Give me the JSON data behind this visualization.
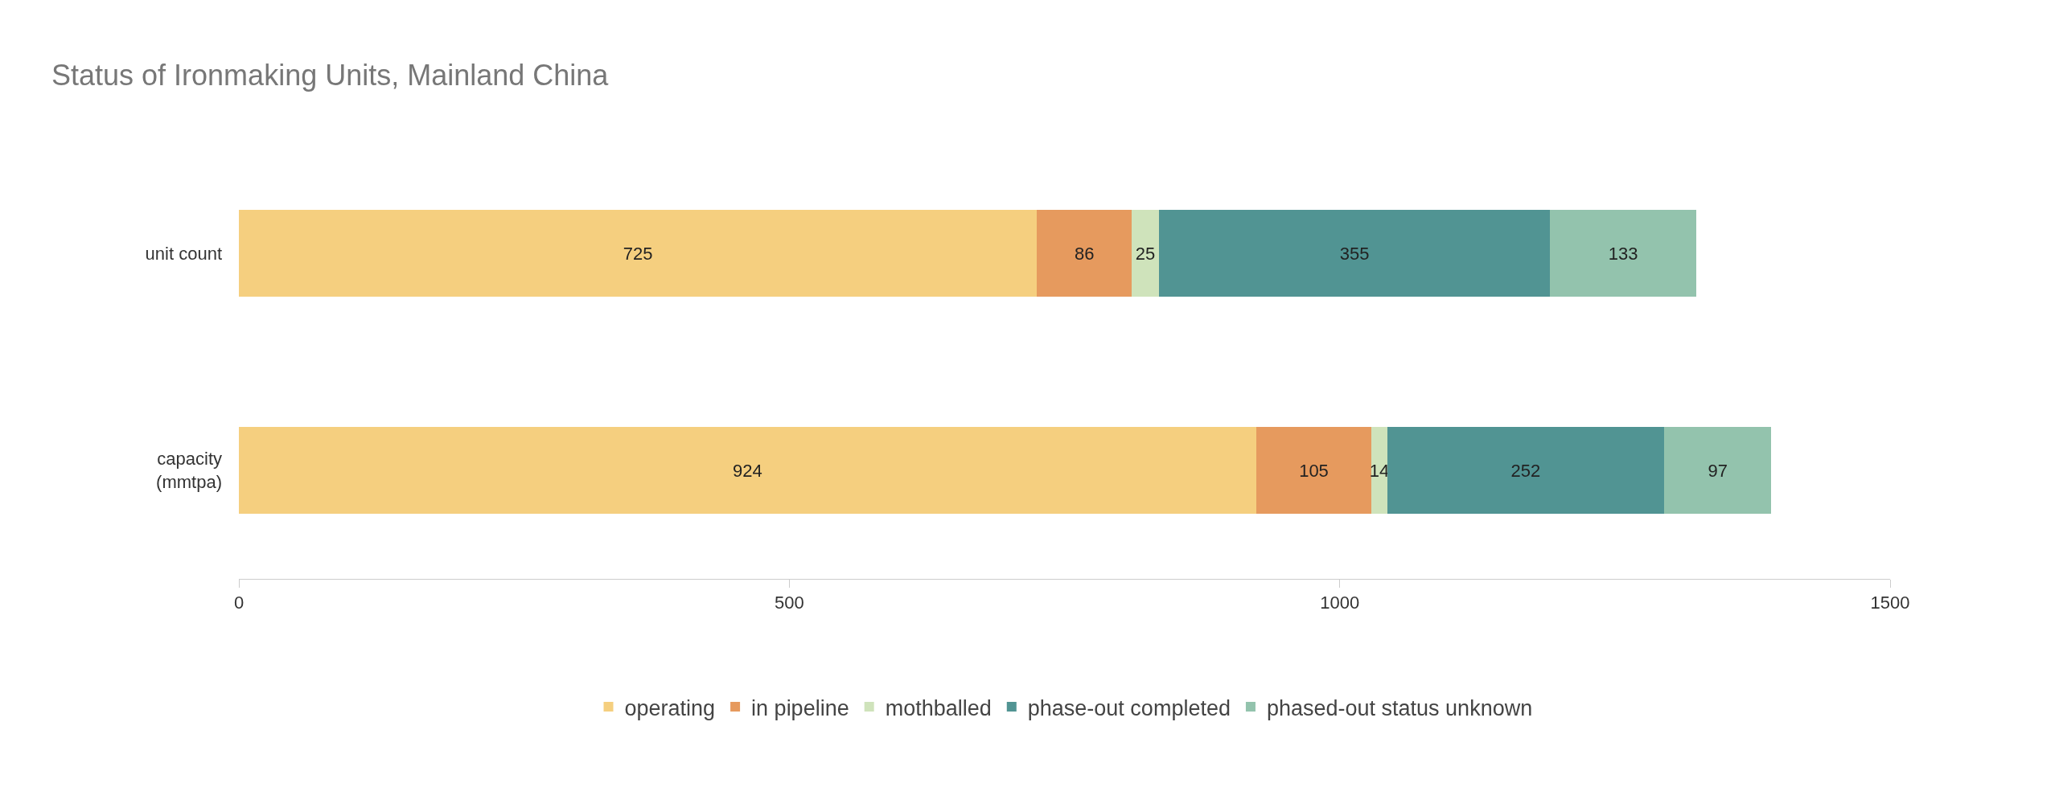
{
  "chart_data": {
    "type": "bar",
    "orientation": "horizontal",
    "stacked": true,
    "title": "Status of Ironmaking Units, Mainland China",
    "categories": [
      "unit count",
      "capacity\n(mmtpa)"
    ],
    "series": [
      {
        "name": "operating",
        "color": "#f5cf7f",
        "values": [
          725,
          924
        ]
      },
      {
        "name": "in pipeline",
        "color": "#e69a5e",
        "values": [
          86,
          105
        ]
      },
      {
        "name": "mothballed",
        "color": "#cfe3bb",
        "values": [
          25,
          14
        ]
      },
      {
        "name": "phase-out completed",
        "color": "#519493",
        "values": [
          355,
          252
        ]
      },
      {
        "name": "phased-out status unknown",
        "color": "#93c3ad",
        "values": [
          133,
          97
        ]
      }
    ],
    "xlim": [
      0,
      1500
    ],
    "xticks": [
      0,
      500,
      1000,
      1500
    ],
    "grid": false,
    "legend": "bottom",
    "data_labels": true
  }
}
